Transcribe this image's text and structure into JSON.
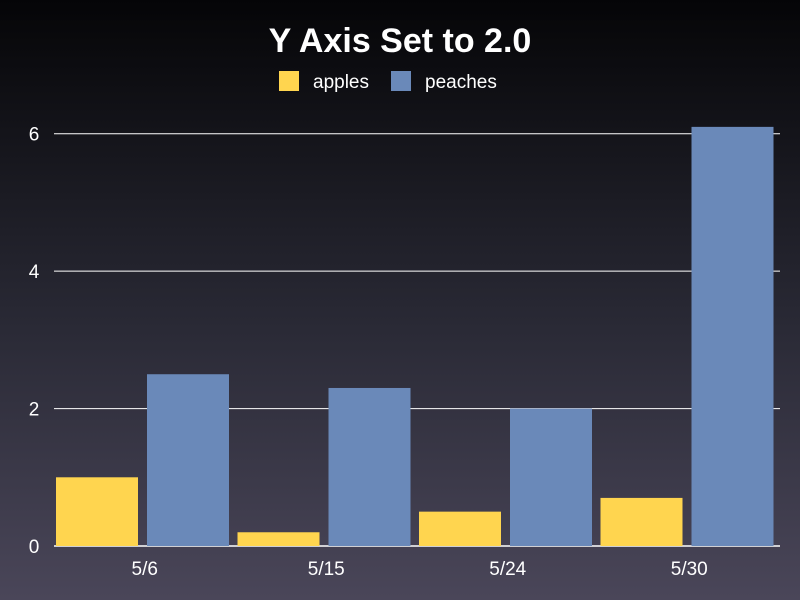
{
  "chart_data": {
    "type": "bar",
    "title": "Y Axis Set to 2.0",
    "categories": [
      "5/6",
      "5/15",
      "5/24",
      "5/30"
    ],
    "series": [
      {
        "name": "apples",
        "color": "#ffd54f",
        "values": [
          1.0,
          0.2,
          0.5,
          0.7
        ]
      },
      {
        "name": "peaches",
        "color": "#6a89b9",
        "values": [
          2.5,
          2.3,
          2.0,
          6.1
        ]
      }
    ],
    "xlabel": "",
    "ylabel": "",
    "ylim": [
      0,
      6.2
    ],
    "yticks": [
      0,
      2,
      4,
      6
    ],
    "grid": true,
    "legend_position": "top-center"
  }
}
